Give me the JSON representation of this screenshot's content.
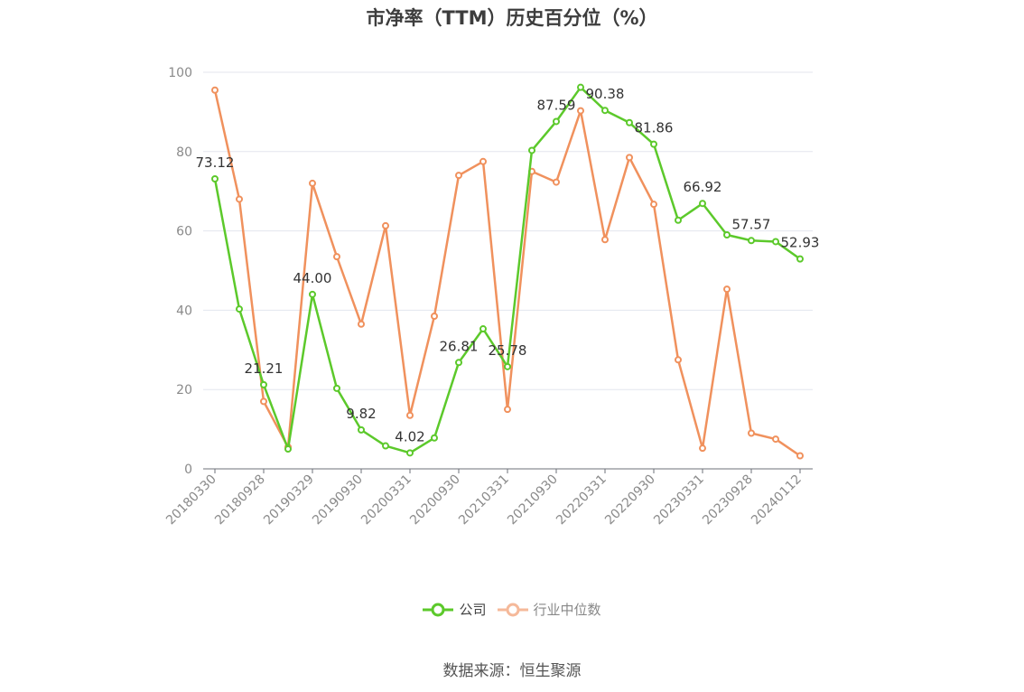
{
  "chart_data": {
    "type": "line",
    "title": "市净率（TTM）历史百分位（%）",
    "ylim": [
      0,
      100
    ],
    "yticks": [
      "0",
      "20",
      "40",
      "60",
      "80",
      "100"
    ],
    "xtick_labels": [
      "20180330",
      "20180928",
      "20190329",
      "20190930",
      "20200331",
      "20200930",
      "20210331",
      "20210930",
      "20220331",
      "20220930",
      "20230331",
      "20230928",
      "20240112"
    ],
    "grid": "horizontal",
    "legend_position": "bottom",
    "series": [
      {
        "name": "公司",
        "color": "#5cc92b",
        "values": [
          73.12,
          40.3,
          21.21,
          5.0,
          44.0,
          20.3,
          9.82,
          5.8,
          4.02,
          7.8,
          26.81,
          35.3,
          25.78,
          80.3,
          87.59,
          96.2,
          90.38,
          87.3,
          81.86,
          62.7,
          66.92,
          59.0,
          57.57,
          57.3,
          52.93
        ],
        "labels": [
          "73.12",
          "",
          "21.21",
          "",
          "44.00",
          "",
          "9.82",
          "",
          "4.02",
          "",
          "26.81",
          "",
          "25.78",
          "",
          "87.59",
          "",
          "90.38",
          "",
          "81.86",
          "",
          "66.92",
          "",
          "57.57",
          "",
          "52.93"
        ]
      },
      {
        "name": "行业中位数",
        "color": "#f0915d",
        "values": [
          95.5,
          68.0,
          17.0,
          5.5,
          72.0,
          53.5,
          36.5,
          61.3,
          13.5,
          38.5,
          74.0,
          77.5,
          15.0,
          75.0,
          72.3,
          90.3,
          57.8,
          78.5,
          66.7,
          27.5,
          5.2,
          45.3,
          9.0,
          7.5,
          3.3
        ]
      }
    ]
  },
  "legend": {
    "company_label": "公司",
    "industry_label": "行业中位数"
  },
  "footer": {
    "source": "数据来源：恒生聚源"
  }
}
